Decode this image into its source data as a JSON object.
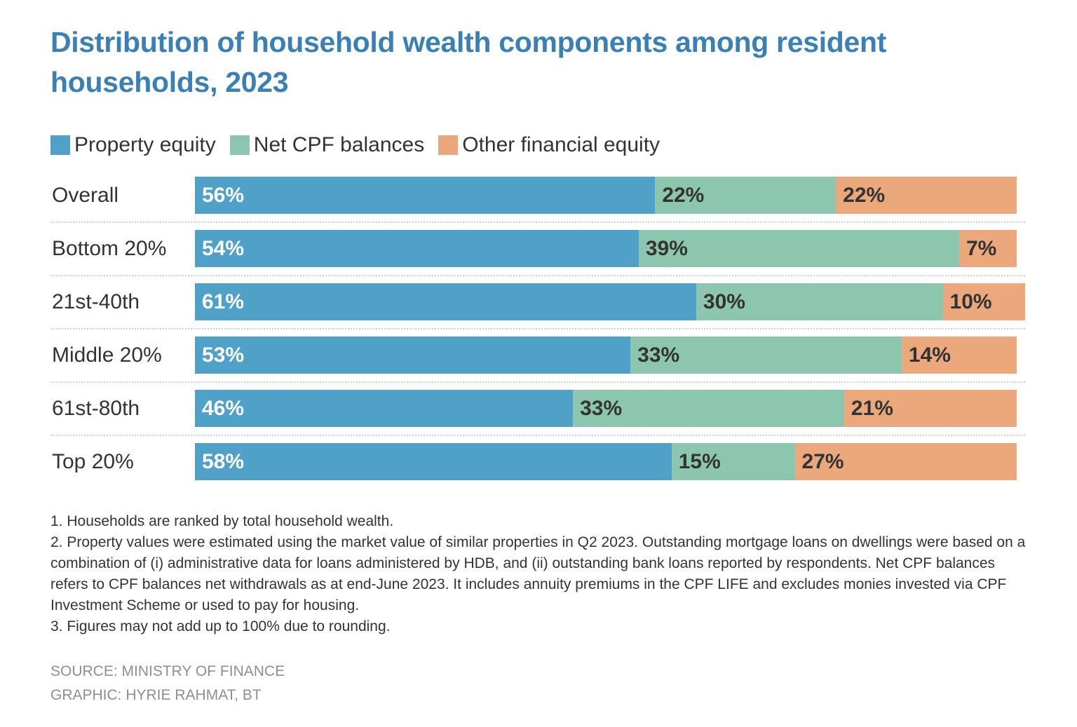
{
  "title": "Distribution of household wealth components among resident households, 2023",
  "colors": {
    "title": "#3a80b4",
    "property_equity": "#4fa1c8",
    "net_cpf": "#8cc6ae",
    "other_financial": "#eaa87c",
    "label_on_blue": "#ffffff",
    "label_on_light": "#333333"
  },
  "chart_data": {
    "type": "bar",
    "orientation": "horizontal",
    "stacked": true,
    "title": "Distribution of household wealth components among resident households, 2023",
    "xlabel": "",
    "ylabel": "",
    "unit": "%",
    "xlim": [
      0,
      100
    ],
    "grid": false,
    "legend_position": "top-left",
    "categories": [
      "Overall",
      "Bottom 20%",
      "21st-40th",
      "Middle 20%",
      "61st-80th",
      "Top 20%"
    ],
    "series": [
      {
        "name": "Property equity",
        "color": "#4fa1c8",
        "values": [
          56,
          54,
          61,
          53,
          46,
          58
        ]
      },
      {
        "name": "Net CPF balances",
        "color": "#8cc6ae",
        "values": [
          22,
          39,
          30,
          33,
          33,
          15
        ]
      },
      {
        "name": "Other financial equity",
        "color": "#eaa87c",
        "values": [
          22,
          7,
          10,
          14,
          21,
          27
        ]
      }
    ]
  },
  "notes": [
    "1. Households are ranked by total household wealth.",
    "2. Property values were estimated using the market value of similar properties in Q2 2023. Outstanding mortgage loans on dwellings were based on a combination of (i) administrative data for loans administered by HDB, and (ii) outstanding bank loans reported by respondents. Net CPF balances refers to CPF balances net withdrawals as at end-June 2023. It includes annuity premiums in the CPF LIFE and excludes monies invested via CPF Investment Scheme or used to pay for housing.",
    "3. Figures may not add up to 100% due to rounding."
  ],
  "source": "SOURCE: MINISTRY OF FINANCE",
  "graphic": "GRAPHIC: HYRIE RAHMAT, BT"
}
